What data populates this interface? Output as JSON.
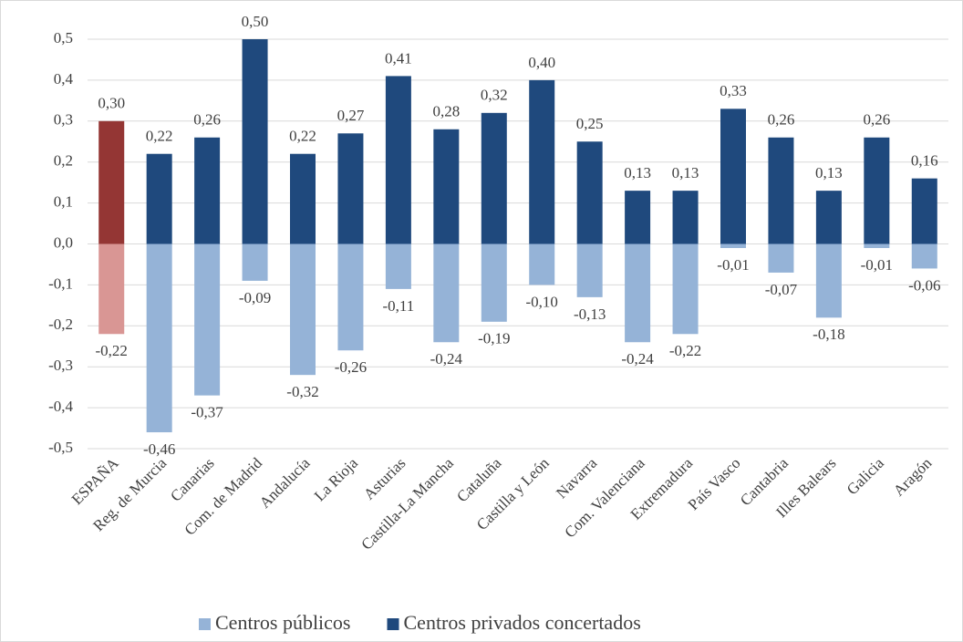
{
  "chart_data": {
    "type": "bar",
    "categories": [
      "ESPAÑA",
      "Reg. de Murcia",
      "Canarias",
      "Com. de Madrid",
      "Andalucía",
      "La Rioja",
      "Asturias",
      "Castilla-La Mancha",
      "Cataluña",
      "Castilla y León",
      "Navarra",
      "Com. Valenciana",
      "Extremadura",
      "País Vasco",
      "Cantabria",
      "Illes Balears",
      "Galicia",
      "Aragón"
    ],
    "series": [
      {
        "name": "Centros públicos",
        "color": "#95b3d7",
        "highlight_color": "#d99694",
        "values": [
          -0.22,
          -0.46,
          -0.37,
          -0.09,
          -0.32,
          -0.26,
          -0.11,
          -0.24,
          -0.19,
          -0.1,
          -0.13,
          -0.24,
          -0.22,
          -0.01,
          -0.07,
          -0.18,
          -0.01,
          -0.06
        ],
        "value_labels": [
          "-0,22",
          "-0,46",
          "-0,37",
          "-0,09",
          "-0,32",
          "-0,26",
          "-0,11",
          "-0,24",
          "-0,19",
          "-0,10",
          "-0,13",
          "-0,24",
          "-0,22",
          "-0,01",
          "-0,07",
          "-0,18",
          "-0,01",
          "-0,06"
        ]
      },
      {
        "name": "Centros privados concertados",
        "color": "#1f497d",
        "highlight_color": "#943634",
        "values": [
          0.3,
          0.22,
          0.26,
          0.5,
          0.22,
          0.27,
          0.41,
          0.28,
          0.32,
          0.4,
          0.25,
          0.13,
          0.13,
          0.33,
          0.26,
          0.13,
          0.26,
          0.16
        ],
        "value_labels": [
          "0,30",
          "0,22",
          "0,26",
          "0,50",
          "0,22",
          "0,27",
          "0,41",
          "0,28",
          "0,32",
          "0,40",
          "0,25",
          "0,13",
          "0,13",
          "0,33",
          "0,26",
          "0,13",
          "0,26",
          "0,16"
        ]
      }
    ],
    "highlight_index": 0,
    "ylim": [
      -0.5,
      0.5
    ],
    "yticks": [
      {
        "value": -0.5,
        "label": "-0,5"
      },
      {
        "value": -0.4,
        "label": "-0,4"
      },
      {
        "value": -0.3,
        "label": "-0,3"
      },
      {
        "value": -0.2,
        "label": "-0,2"
      },
      {
        "value": -0.1,
        "label": "-0,1"
      },
      {
        "value": 0,
        "label": "0,0"
      },
      {
        "value": 0.1,
        "label": "0,1"
      },
      {
        "value": 0.2,
        "label": "0,2"
      },
      {
        "value": 0.3,
        "label": "0,3"
      },
      {
        "value": 0.4,
        "label": "0,4"
      },
      {
        "value": 0.5,
        "label": "0,5"
      }
    ],
    "grid": true,
    "legend": "bottom"
  }
}
